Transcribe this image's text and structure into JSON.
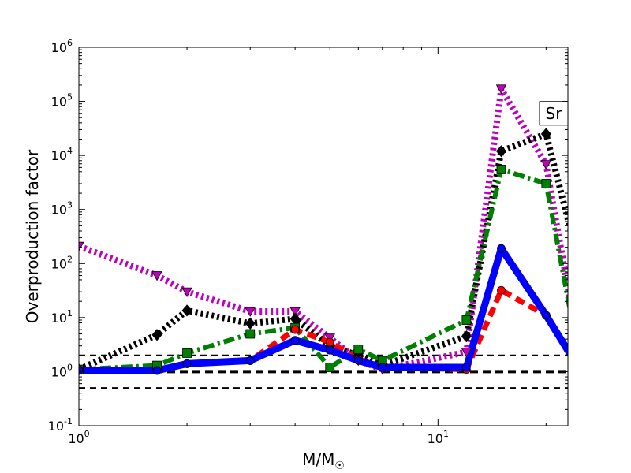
{
  "chart_data": {
    "type": "line",
    "xscale": "log",
    "yscale": "log",
    "xlim": [
      1,
      23
    ],
    "ylim": [
      0.1,
      1000000
    ],
    "xlabel": "M/M",
    "xlabel_subscript": "☉",
    "ylabel": "Overproduction factor",
    "x_ticks": [
      1,
      10
    ],
    "x_tick_labels": [
      {
        "base": "10",
        "exp": "0"
      },
      {
        "base": "10",
        "exp": "1"
      }
    ],
    "y_ticks": [
      0.1,
      1,
      10,
      100,
      1000,
      10000,
      100000,
      1000000
    ],
    "y_tick_labels": [
      {
        "base": "10",
        "exp": "-1"
      },
      {
        "base": "10",
        "exp": "0"
      },
      {
        "base": "10",
        "exp": "1"
      },
      {
        "base": "10",
        "exp": "2"
      },
      {
        "base": "10",
        "exp": "3"
      },
      {
        "base": "10",
        "exp": "4"
      },
      {
        "base": "10",
        "exp": "5"
      },
      {
        "base": "10",
        "exp": "6"
      }
    ],
    "annotation": {
      "text": "Sr",
      "x": 21,
      "y": 60000
    },
    "reference_lines": [
      {
        "y": 0.5,
        "color": "#000000",
        "style": "dashed"
      },
      {
        "y": 1.0,
        "color": "#000000",
        "style": "dashed-thick"
      },
      {
        "y": 2.0,
        "color": "#000000",
        "style": "dashed"
      }
    ],
    "series": [
      {
        "color": "#bf00bf",
        "style": "dotted",
        "marker": "triangle-down",
        "x": [
          1,
          1.65,
          2,
          3,
          4,
          5,
          6,
          7,
          12,
          15,
          20,
          25
        ],
        "y": [
          210,
          60,
          30,
          13,
          13,
          4.2,
          1.6,
          1.1,
          2.3,
          170000,
          6800,
          1.5
        ]
      },
      {
        "color": "#000000",
        "style": "dotted",
        "marker": "diamond",
        "x": [
          1,
          1.65,
          2,
          3,
          4,
          5,
          6,
          7,
          12,
          15,
          20,
          25
        ],
        "y": [
          1.1,
          4.8,
          13.5,
          7.8,
          9.5,
          3.0,
          2.0,
          1.3,
          4.5,
          12000,
          25000,
          75
        ]
      },
      {
        "color": "#008000",
        "style": "dashdot",
        "marker": "square",
        "x": [
          1,
          1.65,
          2,
          3,
          4,
          5,
          6,
          7,
          12,
          15,
          20,
          25
        ],
        "y": [
          1.1,
          1.3,
          2.2,
          5.0,
          6.5,
          1.2,
          2.6,
          1.6,
          9.0,
          5500,
          3000,
          1.2
        ]
      },
      {
        "color": "#ff0000",
        "style": "dashed",
        "marker": "circle",
        "x": [
          1,
          1.65,
          2,
          3,
          4,
          5,
          6,
          7,
          12,
          15,
          20,
          25
        ],
        "y": [
          1.1,
          1.05,
          1.4,
          1.6,
          6.0,
          3.5,
          1.7,
          1.2,
          1.1,
          32,
          11,
          1.0
        ]
      },
      {
        "color": "#0000ff",
        "style": "solid",
        "marker": "circle",
        "x": [
          1,
          1.65,
          2,
          3,
          4,
          5,
          6,
          7,
          12,
          15,
          20,
          25
        ],
        "y": [
          1.05,
          1.05,
          1.4,
          1.6,
          3.8,
          2.5,
          1.6,
          1.2,
          1.2,
          190,
          11,
          1.0
        ]
      }
    ]
  }
}
